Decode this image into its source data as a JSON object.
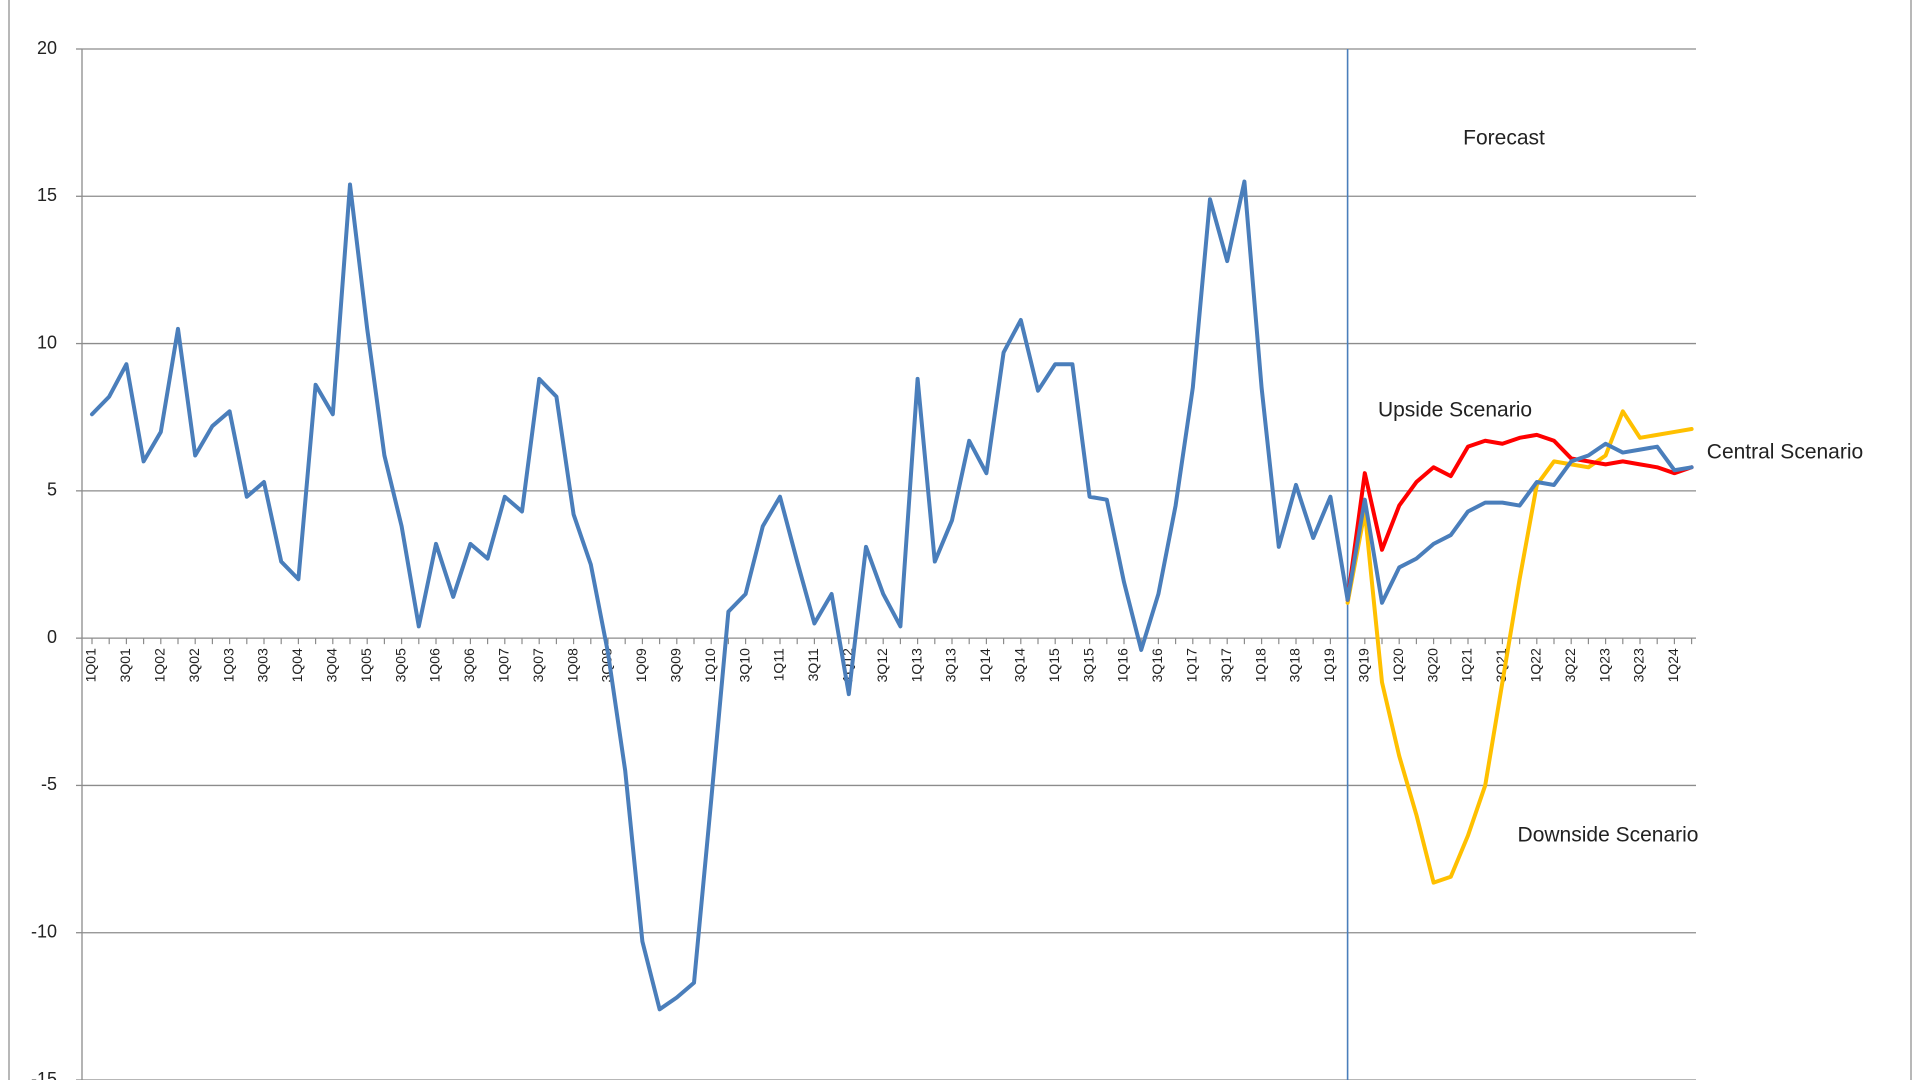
{
  "chart_data": {
    "type": "line",
    "annotation": "Forecast",
    "categories": [
      "1Q01",
      null,
      "3Q01",
      null,
      "1Q02",
      null,
      "3Q02",
      null,
      "1Q03",
      null,
      "3Q03",
      null,
      "1Q04",
      null,
      "3Q04",
      null,
      "1Q05",
      null,
      "3Q05",
      null,
      "1Q06",
      null,
      "3Q06",
      null,
      "1Q07",
      null,
      "3Q07",
      null,
      "1Q08",
      null,
      "3Q08",
      null,
      "1Q09",
      null,
      "3Q09",
      null,
      "1Q10",
      null,
      "3Q10",
      null,
      "1Q11",
      null,
      "3Q11",
      null,
      "1Q12",
      null,
      "3Q12",
      null,
      "1Q13",
      null,
      "3Q13",
      null,
      "1Q14",
      null,
      "3Q14",
      null,
      "1Q15",
      null,
      "3Q15",
      null,
      "1Q16",
      null,
      "3Q16",
      null,
      "1Q17",
      null,
      "3Q17",
      null,
      "1Q18",
      null,
      "3Q18",
      null,
      "1Q19",
      null,
      "3Q19",
      null,
      "1Q20",
      null,
      "3Q20",
      null,
      "1Q21",
      null,
      "3Q21",
      null,
      "1Q22",
      null,
      "3Q22",
      null,
      "1Q23",
      null,
      "3Q23",
      null,
      "1Q24",
      null
    ],
    "series": [
      {
        "name": "Central Scenario",
        "color": "#4a7ebb",
        "values": [
          7.6,
          8.2,
          9.3,
          6.0,
          7.0,
          10.5,
          6.2,
          7.2,
          7.7,
          4.8,
          5.3,
          2.6,
          2.0,
          8.6,
          7.6,
          15.4,
          10.5,
          6.2,
          3.8,
          0.4,
          3.2,
          1.4,
          3.2,
          2.7,
          4.8,
          4.3,
          8.8,
          8.2,
          4.2,
          2.5,
          -0.5,
          -4.5,
          -10.3,
          -12.6,
          -12.2,
          -11.7,
          -5.5,
          0.9,
          1.5,
          3.8,
          4.8,
          2.6,
          0.5,
          1.5,
          -1.9,
          3.1,
          1.5,
          0.4,
          8.8,
          2.6,
          4.0,
          6.7,
          5.6,
          9.7,
          10.8,
          8.4,
          9.3,
          9.3,
          4.8,
          4.7,
          1.9,
          -0.4,
          1.5,
          4.5,
          8.5,
          14.9,
          12.8,
          15.5,
          8.5,
          3.1,
          5.2,
          3.4,
          4.8,
          1.3,
          4.7,
          1.2,
          2.4,
          2.7,
          3.2,
          3.5,
          4.3,
          4.6,
          4.6,
          4.5,
          5.3,
          5.2,
          6.0,
          6.2,
          6.6,
          6.3,
          6.4,
          6.5,
          5.7,
          5.8
        ]
      },
      {
        "name": "Upside Scenario",
        "color": "#ff0000",
        "values": [
          null,
          null,
          null,
          null,
          null,
          null,
          null,
          null,
          null,
          null,
          null,
          null,
          null,
          null,
          null,
          null,
          null,
          null,
          null,
          null,
          null,
          null,
          null,
          null,
          null,
          null,
          null,
          null,
          null,
          null,
          null,
          null,
          null,
          null,
          null,
          null,
          null,
          null,
          null,
          null,
          null,
          null,
          null,
          null,
          null,
          null,
          null,
          null,
          null,
          null,
          null,
          null,
          null,
          null,
          null,
          null,
          null,
          null,
          null,
          null,
          null,
          null,
          null,
          null,
          null,
          null,
          null,
          null,
          null,
          null,
          null,
          null,
          null,
          1.3,
          5.6,
          3.0,
          4.5,
          5.3,
          5.8,
          5.5,
          6.5,
          6.7,
          6.6,
          6.8,
          6.9,
          6.7,
          6.1,
          6.0,
          5.9,
          6.0,
          5.9,
          5.8,
          5.6,
          5.8
        ]
      },
      {
        "name": "Downside Scenario",
        "color": "#ffc000",
        "values": [
          null,
          null,
          null,
          null,
          null,
          null,
          null,
          null,
          null,
          null,
          null,
          null,
          null,
          null,
          null,
          null,
          null,
          null,
          null,
          null,
          null,
          null,
          null,
          null,
          null,
          null,
          null,
          null,
          null,
          null,
          null,
          null,
          null,
          null,
          null,
          null,
          null,
          null,
          null,
          null,
          null,
          null,
          null,
          null,
          null,
          null,
          null,
          null,
          null,
          null,
          null,
          null,
          null,
          null,
          null,
          null,
          null,
          null,
          null,
          null,
          null,
          null,
          null,
          null,
          null,
          null,
          null,
          null,
          null,
          null,
          null,
          null,
          null,
          1.2,
          4.3,
          -1.5,
          -4.0,
          -6.0,
          -8.3,
          -8.1,
          -6.7,
          -5.0,
          -1.5,
          2.0,
          5.2,
          6.0,
          5.9,
          5.8,
          6.2,
          7.7,
          6.8,
          6.9,
          7.0,
          7.1
        ]
      }
    ],
    "ylim": [
      -15,
      20
    ],
    "yticks": [
      -15,
      -10,
      -5,
      0,
      5,
      10,
      15,
      20
    ],
    "grid": true
  }
}
